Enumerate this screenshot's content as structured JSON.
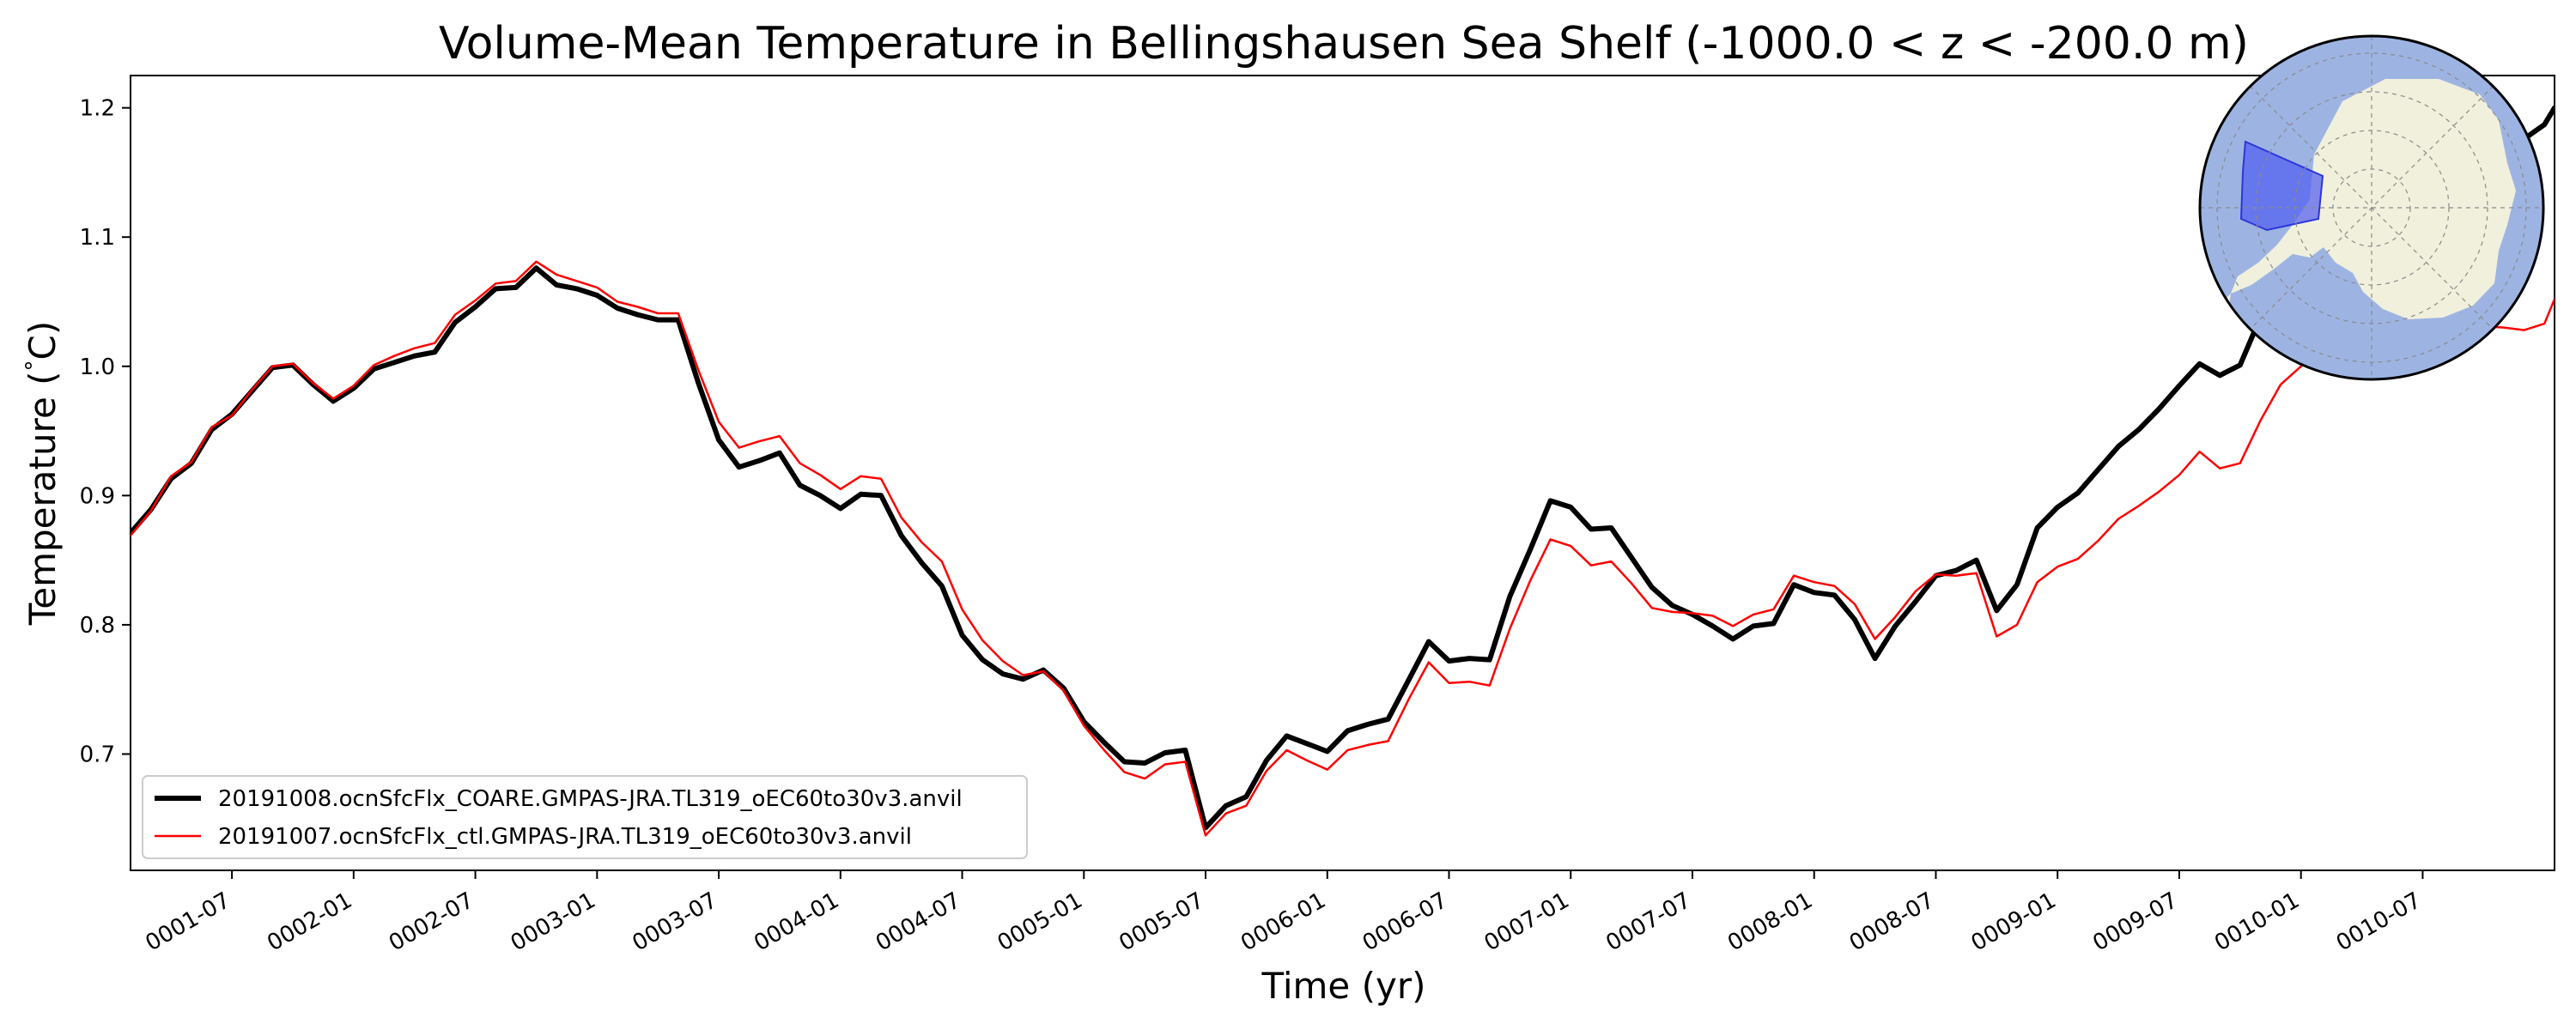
{
  "chart_data": {
    "type": "line",
    "title": "Volume-Mean Temperature in Bellingshausen Sea Shelf (-1000.0 < z < -200.0 m)",
    "xlabel": "Time (yr)",
    "ylabel": "Temperature ($^\\circ$C)",
    "ylabel_display": "Temperature (",
    "ylabel_degree": "°",
    "ylabel_unit": "C)",
    "xlim": [
      0.0417,
      10.0
    ],
    "ylim": [
      0.61,
      1.225
    ],
    "grid": false,
    "legend_position": "lower-left",
    "x_ticks": [
      {
        "value": 0.4583,
        "label": "0001-07"
      },
      {
        "value": 0.9583,
        "label": "0002-01"
      },
      {
        "value": 1.4583,
        "label": "0002-07"
      },
      {
        "value": 1.9583,
        "label": "0003-01"
      },
      {
        "value": 2.4583,
        "label": "0003-07"
      },
      {
        "value": 2.9583,
        "label": "0004-01"
      },
      {
        "value": 3.4583,
        "label": "0004-07"
      },
      {
        "value": 3.9583,
        "label": "0005-01"
      },
      {
        "value": 4.4583,
        "label": "0005-07"
      },
      {
        "value": 4.9583,
        "label": "0006-01"
      },
      {
        "value": 5.4583,
        "label": "0006-07"
      },
      {
        "value": 5.9583,
        "label": "0007-01"
      },
      {
        "value": 6.4583,
        "label": "0007-07"
      },
      {
        "value": 6.9583,
        "label": "0008-01"
      },
      {
        "value": 7.4583,
        "label": "0008-07"
      },
      {
        "value": 7.9583,
        "label": "0009-01"
      },
      {
        "value": 8.4583,
        "label": "0009-07"
      },
      {
        "value": 8.9583,
        "label": "0010-01"
      },
      {
        "value": 9.4583,
        "label": "0010-07"
      }
    ],
    "y_ticks": [
      {
        "value": 0.7,
        "label": "0.7"
      },
      {
        "value": 0.8,
        "label": "0.8"
      },
      {
        "value": 0.9,
        "label": "0.9"
      },
      {
        "value": 1.0,
        "label": "1.0"
      },
      {
        "value": 1.1,
        "label": "1.1"
      },
      {
        "value": 1.2,
        "label": "1.2"
      }
    ],
    "series": [
      {
        "name": "20191008.ocnSfcFlx_COARE.GMPAS-JRA.TL319_oEC60to30v3.anvil",
        "color": "#000000",
        "x": [
          0.0417,
          0.125,
          0.2083,
          0.2917,
          0.375,
          0.4583,
          0.5417,
          0.625,
          0.7083,
          0.7917,
          0.875,
          0.9583,
          1.0417,
          1.125,
          1.2083,
          1.2917,
          1.375,
          1.4583,
          1.5417,
          1.625,
          1.7083,
          1.7917,
          1.875,
          1.9583,
          2.0417,
          2.125,
          2.2083,
          2.2917,
          2.375,
          2.4583,
          2.5417,
          2.625,
          2.7083,
          2.7917,
          2.875,
          2.9583,
          3.0417,
          3.125,
          3.2083,
          3.2917,
          3.375,
          3.4583,
          3.5417,
          3.625,
          3.7083,
          3.7917,
          3.875,
          3.9583,
          4.0417,
          4.125,
          4.2083,
          4.2917,
          4.375,
          4.4583,
          4.5417,
          4.625,
          4.7083,
          4.7917,
          4.875,
          4.9583,
          5.0417,
          5.125,
          5.2083,
          5.2917,
          5.375,
          5.4583,
          5.5417,
          5.625,
          5.7083,
          5.7917,
          5.875,
          5.9583,
          6.0417,
          6.125,
          6.2083,
          6.2917,
          6.375,
          6.4583,
          6.5417,
          6.625,
          6.7083,
          6.7917,
          6.875,
          6.9583,
          7.0417,
          7.125,
          7.2083,
          7.2917,
          7.375,
          7.4583,
          7.5417,
          7.625,
          7.7083,
          7.7917,
          7.875,
          7.9583,
          8.0417,
          8.125,
          8.2083,
          8.2917,
          8.375,
          8.4583,
          8.5417,
          8.625,
          8.7083,
          8.7917,
          8.875,
          8.9583,
          9.0417,
          9.125,
          9.2083,
          9.2917,
          9.375,
          9.4583,
          9.5417,
          9.625,
          9.7083,
          9.7917,
          9.875,
          9.9583,
          10.0
        ],
        "values": [
          0.871,
          0.889,
          0.913,
          0.925,
          0.951,
          0.963,
          0.981,
          0.999,
          1.001,
          0.986,
          0.973,
          0.983,
          0.998,
          1.003,
          1.008,
          1.011,
          1.034,
          1.046,
          1.06,
          1.061,
          1.076,
          1.063,
          1.06,
          1.055,
          1.045,
          1.04,
          1.036,
          1.036,
          0.987,
          0.943,
          0.922,
          0.927,
          0.933,
          0.908,
          0.9,
          0.89,
          0.901,
          0.9,
          0.869,
          0.848,
          0.83,
          0.792,
          0.773,
          0.762,
          0.758,
          0.765,
          0.751,
          0.725,
          0.709,
          0.694,
          0.693,
          0.701,
          0.703,
          0.643,
          0.66,
          0.667,
          0.695,
          0.714,
          0.708,
          0.702,
          0.718,
          0.723,
          0.727,
          0.757,
          0.787,
          0.772,
          0.774,
          0.773,
          0.822,
          0.858,
          0.896,
          0.891,
          0.874,
          0.875,
          0.852,
          0.829,
          0.815,
          0.808,
          0.799,
          0.789,
          0.799,
          0.801,
          0.831,
          0.825,
          0.823,
          0.804,
          0.774,
          0.799,
          0.818,
          0.838,
          0.842,
          0.85,
          0.811,
          0.831,
          0.875,
          0.891,
          0.902,
          0.92,
          0.938,
          0.951,
          0.967,
          0.985,
          1.002,
          0.993,
          1.001,
          1.038,
          1.052,
          1.059,
          1.076,
          1.086,
          1.092,
          1.102,
          1.112,
          1.122,
          1.13,
          1.14,
          1.152,
          1.163,
          1.176,
          1.187,
          1.2
        ]
      },
      {
        "name": "20191007.ocnSfcFlx_ctl.GMPAS-JRA.TL319_oEC60to30v3.anvil",
        "color": "#ff0000",
        "x": [
          0.0417,
          0.125,
          0.2083,
          0.2917,
          0.375,
          0.4583,
          0.5417,
          0.625,
          0.7083,
          0.7917,
          0.875,
          0.9583,
          1.0417,
          1.125,
          1.2083,
          1.2917,
          1.375,
          1.4583,
          1.5417,
          1.625,
          1.7083,
          1.7917,
          1.875,
          1.9583,
          2.0417,
          2.125,
          2.2083,
          2.2917,
          2.375,
          2.4583,
          2.5417,
          2.625,
          2.7083,
          2.7917,
          2.875,
          2.9583,
          3.0417,
          3.125,
          3.2083,
          3.2917,
          3.375,
          3.4583,
          3.5417,
          3.625,
          3.7083,
          3.7917,
          3.875,
          3.9583,
          4.0417,
          4.125,
          4.2083,
          4.2917,
          4.375,
          4.4583,
          4.5417,
          4.625,
          4.7083,
          4.7917,
          4.875,
          4.9583,
          5.0417,
          5.125,
          5.2083,
          5.2917,
          5.375,
          5.4583,
          5.5417,
          5.625,
          5.7083,
          5.7917,
          5.875,
          5.9583,
          6.0417,
          6.125,
          6.2083,
          6.2917,
          6.375,
          6.4583,
          6.5417,
          6.625,
          6.7083,
          6.7917,
          6.875,
          6.9583,
          7.0417,
          7.125,
          7.2083,
          7.2917,
          7.375,
          7.4583,
          7.5417,
          7.625,
          7.7083,
          7.7917,
          7.875,
          7.9583,
          8.0417,
          8.125,
          8.2083,
          8.2917,
          8.375,
          8.4583,
          8.5417,
          8.625,
          8.7083,
          8.7917,
          8.875,
          8.9583,
          9.0417,
          9.125,
          9.2083,
          9.2917,
          9.375,
          9.4583,
          9.5417,
          9.625,
          9.7083,
          9.7917,
          9.875,
          9.9583,
          10.0
        ],
        "values": [
          0.869,
          0.888,
          0.915,
          0.926,
          0.953,
          0.962,
          0.982,
          1.0,
          1.002,
          0.987,
          0.975,
          0.985,
          1.001,
          1.008,
          1.014,
          1.018,
          1.04,
          1.051,
          1.064,
          1.066,
          1.081,
          1.071,
          1.066,
          1.061,
          1.05,
          1.046,
          1.041,
          1.041,
          0.997,
          0.957,
          0.937,
          0.942,
          0.946,
          0.925,
          0.916,
          0.905,
          0.915,
          0.913,
          0.883,
          0.864,
          0.849,
          0.812,
          0.788,
          0.772,
          0.761,
          0.764,
          0.749,
          0.722,
          0.703,
          0.686,
          0.681,
          0.692,
          0.694,
          0.637,
          0.654,
          0.66,
          0.687,
          0.703,
          0.695,
          0.688,
          0.703,
          0.707,
          0.71,
          0.742,
          0.771,
          0.755,
          0.756,
          0.753,
          0.797,
          0.834,
          0.866,
          0.861,
          0.846,
          0.849,
          0.832,
          0.813,
          0.81,
          0.809,
          0.807,
          0.799,
          0.808,
          0.812,
          0.838,
          0.833,
          0.83,
          0.816,
          0.789,
          0.806,
          0.826,
          0.839,
          0.838,
          0.84,
          0.791,
          0.8,
          0.833,
          0.845,
          0.851,
          0.865,
          0.882,
          0.892,
          0.903,
          0.916,
          0.934,
          0.921,
          0.925,
          0.958,
          0.986,
          1.0,
          1.012,
          1.02,
          1.025,
          1.028,
          1.03,
          1.031,
          1.03,
          1.029,
          1.031,
          1.03,
          1.028,
          1.033,
          1.052
        ]
      }
    ]
  },
  "inset_map": {
    "description_name": "antarctica-region-map",
    "ocean_color": "#9db4e3",
    "land_color": "#f1f0dc",
    "region_color": "#4f5bf0"
  }
}
